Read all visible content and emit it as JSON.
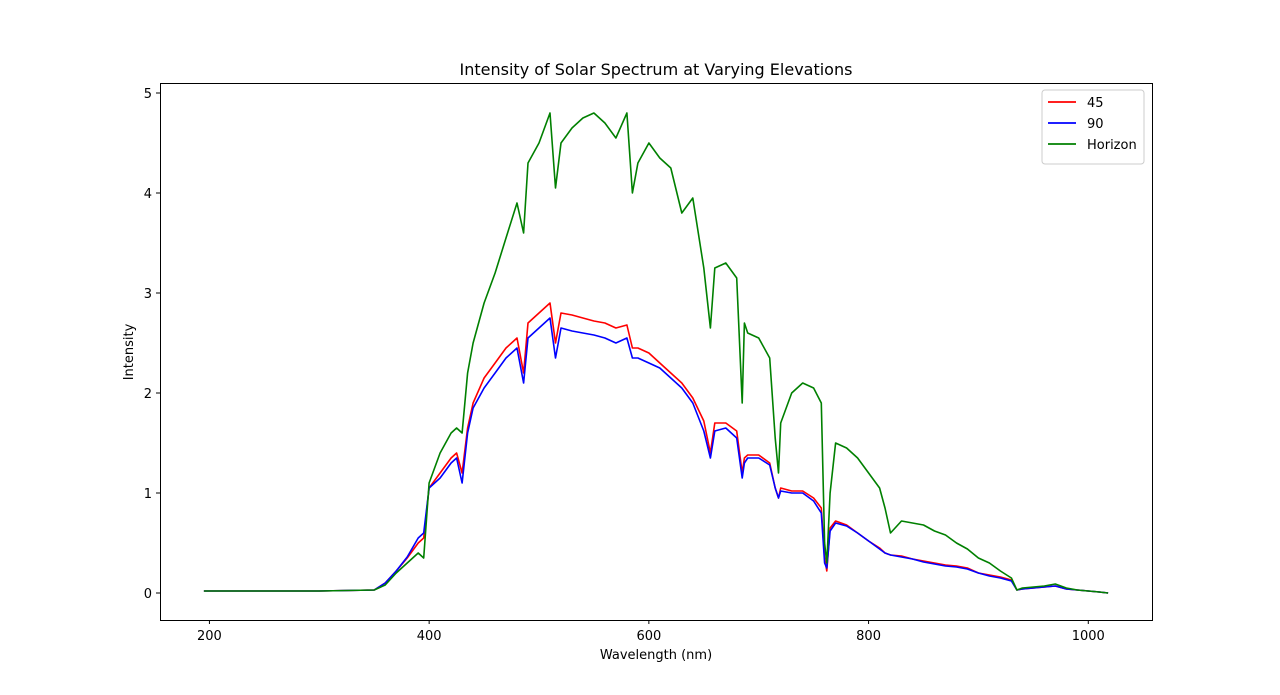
{
  "chart_data": {
    "type": "line",
    "title": "Intensity of Solar Spectrum at Varying Elevations",
    "xlabel": "Wavelength (nm)",
    "ylabel": "Intensity",
    "xlim": [
      155,
      1058
    ],
    "ylim": [
      -0.27,
      5.1
    ],
    "x_ticks": [
      200,
      400,
      600,
      800,
      1000
    ],
    "y_ticks": [
      0,
      1,
      2,
      3,
      4,
      5
    ],
    "grid": false,
    "legend_position": "top-right",
    "x": [
      195,
      300,
      350,
      360,
      370,
      380,
      390,
      395,
      400,
      410,
      420,
      425,
      430,
      435,
      440,
      450,
      460,
      470,
      480,
      486,
      490,
      500,
      510,
      515,
      520,
      530,
      540,
      550,
      560,
      570,
      580,
      585,
      590,
      600,
      610,
      620,
      630,
      640,
      650,
      656,
      660,
      670,
      680,
      685,
      687,
      690,
      700,
      710,
      715,
      718,
      720,
      730,
      740,
      750,
      757,
      760,
      762,
      765,
      770,
      780,
      790,
      800,
      810,
      815,
      820,
      830,
      840,
      850,
      860,
      870,
      880,
      890,
      900,
      910,
      920,
      930,
      935,
      940,
      950,
      960,
      970,
      980,
      990,
      1000,
      1010,
      1018
    ],
    "series": [
      {
        "name": "45",
        "color": "#ff0000",
        "values": [
          0.02,
          0.02,
          0.03,
          0.1,
          0.22,
          0.35,
          0.5,
          0.55,
          1.05,
          1.2,
          1.35,
          1.4,
          1.2,
          1.65,
          1.9,
          2.15,
          2.3,
          2.45,
          2.55,
          2.2,
          2.7,
          2.8,
          2.9,
          2.5,
          2.8,
          2.78,
          2.75,
          2.72,
          2.7,
          2.65,
          2.68,
          2.45,
          2.45,
          2.4,
          2.3,
          2.2,
          2.1,
          1.95,
          1.72,
          1.4,
          1.7,
          1.7,
          1.62,
          1.2,
          1.35,
          1.38,
          1.38,
          1.3,
          1.05,
          0.95,
          1.05,
          1.02,
          1.02,
          0.95,
          0.85,
          0.35,
          0.22,
          0.65,
          0.72,
          0.68,
          0.6,
          0.52,
          0.45,
          0.4,
          0.38,
          0.37,
          0.34,
          0.32,
          0.3,
          0.28,
          0.27,
          0.25,
          0.2,
          0.18,
          0.16,
          0.13,
          0.03,
          0.04,
          0.05,
          0.06,
          0.07,
          0.04,
          0.03,
          0.02,
          0.01,
          0.0
        ]
      },
      {
        "name": "90",
        "color": "#0000ff",
        "values": [
          0.02,
          0.02,
          0.03,
          0.1,
          0.22,
          0.36,
          0.55,
          0.6,
          1.05,
          1.15,
          1.3,
          1.35,
          1.1,
          1.6,
          1.85,
          2.05,
          2.2,
          2.35,
          2.45,
          2.1,
          2.55,
          2.65,
          2.75,
          2.35,
          2.65,
          2.62,
          2.6,
          2.58,
          2.55,
          2.5,
          2.55,
          2.35,
          2.35,
          2.3,
          2.25,
          2.15,
          2.05,
          1.9,
          1.62,
          1.35,
          1.62,
          1.65,
          1.55,
          1.15,
          1.3,
          1.35,
          1.35,
          1.28,
          1.05,
          0.95,
          1.02,
          1.0,
          1.0,
          0.92,
          0.8,
          0.3,
          0.25,
          0.62,
          0.7,
          0.67,
          0.6,
          0.52,
          0.44,
          0.4,
          0.38,
          0.36,
          0.34,
          0.31,
          0.29,
          0.27,
          0.26,
          0.24,
          0.2,
          0.17,
          0.15,
          0.12,
          0.03,
          0.04,
          0.05,
          0.06,
          0.07,
          0.04,
          0.03,
          0.02,
          0.01,
          0.0
        ]
      },
      {
        "name": "Horizon",
        "color": "#008000",
        "values": [
          0.02,
          0.02,
          0.03,
          0.08,
          0.2,
          0.3,
          0.4,
          0.35,
          1.1,
          1.4,
          1.6,
          1.65,
          1.6,
          2.2,
          2.5,
          2.9,
          3.2,
          3.55,
          3.9,
          3.6,
          4.3,
          4.5,
          4.8,
          4.05,
          4.5,
          4.65,
          4.75,
          4.8,
          4.7,
          4.55,
          4.8,
          4.0,
          4.3,
          4.5,
          4.35,
          4.25,
          3.8,
          3.95,
          3.25,
          2.65,
          3.25,
          3.3,
          3.15,
          1.9,
          2.7,
          2.6,
          2.55,
          2.35,
          1.55,
          1.2,
          1.7,
          2.0,
          2.1,
          2.05,
          1.9,
          0.5,
          0.3,
          1.0,
          1.5,
          1.45,
          1.35,
          1.2,
          1.05,
          0.85,
          0.6,
          0.72,
          0.7,
          0.68,
          0.62,
          0.58,
          0.5,
          0.44,
          0.35,
          0.3,
          0.22,
          0.15,
          0.03,
          0.05,
          0.06,
          0.07,
          0.09,
          0.05,
          0.03,
          0.02,
          0.01,
          0.0
        ]
      }
    ]
  }
}
